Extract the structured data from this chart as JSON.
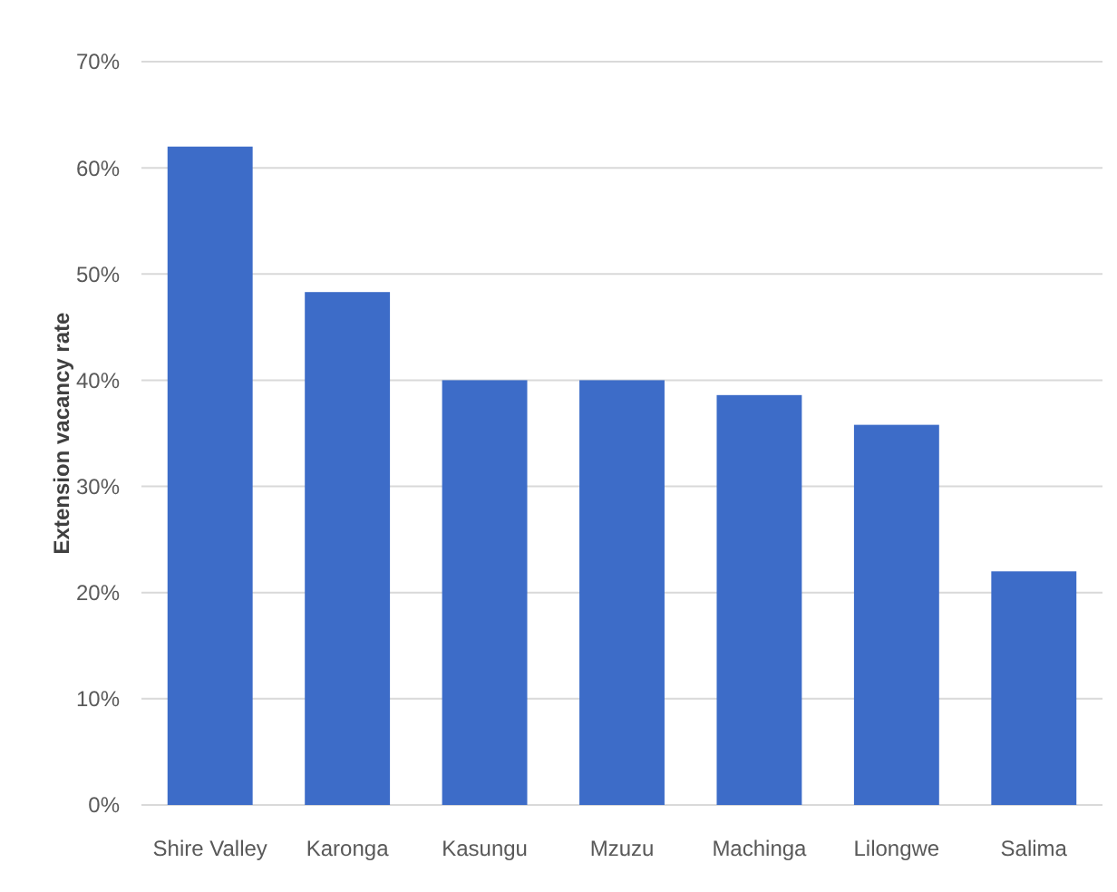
{
  "chart_data": {
    "type": "bar",
    "ylabel": "Extension vacancy rate",
    "categories": [
      "Shire Valley",
      "Karonga",
      "Kasungu",
      "Mzuzu",
      "Machinga",
      "Lilongwe",
      "Salima"
    ],
    "values": [
      62,
      48.3,
      40,
      40,
      38.6,
      35.8,
      22
    ],
    "color": "#3d6cc8",
    "ylim": [
      0,
      70
    ],
    "yticks": [
      {
        "value": 0,
        "label": "0%"
      },
      {
        "value": 10,
        "label": "10%"
      },
      {
        "value": 20,
        "label": "20%"
      },
      {
        "value": 30,
        "label": "30%"
      },
      {
        "value": 40,
        "label": "40%"
      },
      {
        "value": 50,
        "label": "50%"
      },
      {
        "value": 60,
        "label": "60%"
      },
      {
        "value": 70,
        "label": "70%"
      }
    ],
    "grid": "y"
  }
}
